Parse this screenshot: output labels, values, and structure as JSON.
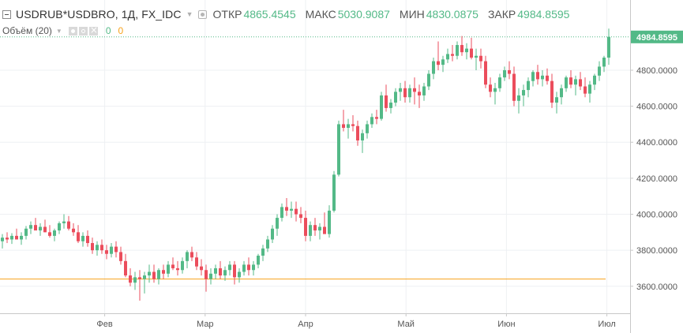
{
  "legend": {
    "symbol": "USDRUB*USDBRO, 1Д, FX_IDC",
    "open_label": "ОТКР",
    "open_value": "4865.4545",
    "high_label": "МАКС",
    "high_value": "5030.9087",
    "low_label": "МИН",
    "low_value": "4830.0875",
    "close_label": "ЗАКР",
    "close_value": "4984.8595"
  },
  "volume": {
    "label": "Объём (20)",
    "value1": "0",
    "value2": "0"
  },
  "price_label": "4984.8595",
  "colors": {
    "up": "#53b987",
    "down": "#eb4d5c",
    "price_tag": "#53b987",
    "hline": "#f7a21b"
  },
  "chart_data": {
    "type": "candlestick",
    "title": "USDRUB*USDBRO, 1Д, FX_IDC",
    "ylim": [
      3450,
      5190
    ],
    "y_ticks": [
      3600,
      3800,
      4000,
      4200,
      4400,
      4600,
      4800
    ],
    "y_tick_labels": [
      "3600.0000",
      "3800.0000",
      "4000.0000",
      "4200.0000",
      "4400.0000",
      "4600.0000",
      "4800.0000"
    ],
    "x_tick_labels": [
      "Фев",
      "Мар",
      "Апр",
      "Май",
      "Июн",
      "Июл"
    ],
    "x_tick_index": [
      21.6,
      42.8,
      64.0,
      85.2,
      106.4,
      127.6
    ],
    "last_price": 4984.8595,
    "horizontal_line": 3640,
    "ohlc": [
      [
        3850,
        3890,
        3810,
        3870
      ],
      [
        3870,
        3900,
        3840,
        3860
      ],
      [
        3860,
        3895,
        3835,
        3880
      ],
      [
        3880,
        3920,
        3860,
        3860
      ],
      [
        3860,
        3900,
        3830,
        3880
      ],
      [
        3880,
        3935,
        3860,
        3920
      ],
      [
        3920,
        3960,
        3890,
        3940
      ],
      [
        3940,
        3980,
        3910,
        3910
      ],
      [
        3910,
        3950,
        3880,
        3930
      ],
      [
        3930,
        3970,
        3900,
        3900
      ],
      [
        3900,
        3940,
        3870,
        3880
      ],
      [
        3880,
        3920,
        3850,
        3910
      ],
      [
        3910,
        3960,
        3890,
        3950
      ],
      [
        3950,
        4000,
        3920,
        3960
      ],
      [
        3960,
        3990,
        3910,
        3920
      ],
      [
        3920,
        3950,
        3880,
        3900
      ],
      [
        3900,
        3940,
        3840,
        3850
      ],
      [
        3850,
        3900,
        3820,
        3880
      ],
      [
        3880,
        3910,
        3820,
        3840
      ],
      [
        3840,
        3870,
        3780,
        3800
      ],
      [
        3800,
        3850,
        3770,
        3830
      ],
      [
        3830,
        3860,
        3780,
        3800
      ],
      [
        3800,
        3830,
        3750,
        3780
      ],
      [
        3780,
        3840,
        3760,
        3820
      ],
      [
        3820,
        3850,
        3760,
        3790
      ],
      [
        3790,
        3820,
        3720,
        3740
      ],
      [
        3740,
        3780,
        3650,
        3660
      ],
      [
        3660,
        3700,
        3600,
        3620
      ],
      [
        3620,
        3680,
        3580,
        3650
      ],
      [
        3650,
        3690,
        3520,
        3640
      ],
      [
        3640,
        3680,
        3560,
        3660
      ],
      [
        3660,
        3720,
        3620,
        3680
      ],
      [
        3680,
        3720,
        3620,
        3640
      ],
      [
        3640,
        3700,
        3610,
        3690
      ],
      [
        3690,
        3720,
        3640,
        3670
      ],
      [
        3670,
        3740,
        3650,
        3720
      ],
      [
        3720,
        3760,
        3690,
        3700
      ],
      [
        3700,
        3740,
        3660,
        3690
      ],
      [
        3690,
        3760,
        3670,
        3740
      ],
      [
        3740,
        3800,
        3700,
        3790
      ],
      [
        3790,
        3820,
        3740,
        3760
      ],
      [
        3760,
        3790,
        3690,
        3710
      ],
      [
        3710,
        3750,
        3660,
        3690
      ],
      [
        3690,
        3720,
        3570,
        3640
      ],
      [
        3640,
        3700,
        3610,
        3670
      ],
      [
        3670,
        3720,
        3640,
        3700
      ],
      [
        3700,
        3740,
        3640,
        3660
      ],
      [
        3660,
        3710,
        3630,
        3690
      ],
      [
        3690,
        3740,
        3660,
        3720
      ],
      [
        3720,
        3740,
        3610,
        3650
      ],
      [
        3650,
        3700,
        3620,
        3680
      ],
      [
        3680,
        3740,
        3660,
        3720
      ],
      [
        3720,
        3760,
        3660,
        3690
      ],
      [
        3690,
        3740,
        3660,
        3720
      ],
      [
        3720,
        3780,
        3700,
        3770
      ],
      [
        3770,
        3830,
        3740,
        3810
      ],
      [
        3810,
        3880,
        3790,
        3860
      ],
      [
        3860,
        3940,
        3840,
        3920
      ],
      [
        3920,
        4000,
        3880,
        3980
      ],
      [
        3980,
        4060,
        3960,
        4040
      ],
      [
        4040,
        4090,
        3990,
        4020
      ],
      [
        4020,
        4070,
        3980,
        4030
      ],
      [
        4030,
        4070,
        3960,
        4000
      ],
      [
        4000,
        4040,
        3950,
        3980
      ],
      [
        3980,
        4020,
        3850,
        3880
      ],
      [
        3880,
        3960,
        3850,
        3940
      ],
      [
        3940,
        3980,
        3880,
        3910
      ],
      [
        3910,
        3950,
        3860,
        3930
      ],
      [
        3930,
        4010,
        3900,
        3890
      ],
      [
        3890,
        4050,
        3870,
        4020
      ],
      [
        4020,
        4240,
        4010,
        4220
      ],
      [
        4220,
        4520,
        4210,
        4500
      ],
      [
        4500,
        4580,
        4460,
        4480
      ],
      [
        4480,
        4530,
        4420,
        4500
      ],
      [
        4500,
        4550,
        4460,
        4490
      ],
      [
        4490,
        4520,
        4380,
        4410
      ],
      [
        4410,
        4470,
        4340,
        4450
      ],
      [
        4450,
        4520,
        4420,
        4500
      ],
      [
        4500,
        4560,
        4480,
        4540
      ],
      [
        4540,
        4580,
        4500,
        4530
      ],
      [
        4530,
        4680,
        4520,
        4660
      ],
      [
        4660,
        4720,
        4570,
        4590
      ],
      [
        4590,
        4640,
        4560,
        4620
      ],
      [
        4620,
        4700,
        4600,
        4680
      ],
      [
        4680,
        4730,
        4630,
        4700
      ],
      [
        4700,
        4740,
        4620,
        4650
      ],
      [
        4650,
        4720,
        4620,
        4700
      ],
      [
        4700,
        4760,
        4610,
        4680
      ],
      [
        4680,
        4720,
        4590,
        4660
      ],
      [
        4660,
        4730,
        4630,
        4710
      ],
      [
        4710,
        4800,
        4690,
        4780
      ],
      [
        4780,
        4870,
        4750,
        4850
      ],
      [
        4850,
        4960,
        4800,
        4830
      ],
      [
        4830,
        4880,
        4790,
        4860
      ],
      [
        4860,
        4920,
        4840,
        4890
      ],
      [
        4890,
        4940,
        4850,
        4880
      ],
      [
        4880,
        4960,
        4860,
        4940
      ],
      [
        4940,
        4990,
        4880,
        4900
      ],
      [
        4900,
        4950,
        4860,
        4920
      ],
      [
        4920,
        4980,
        4860,
        4870
      ],
      [
        4870,
        4920,
        4800,
        4880
      ],
      [
        4880,
        4920,
        4810,
        4850
      ],
      [
        4850,
        4880,
        4700,
        4720
      ],
      [
        4720,
        4760,
        4650,
        4680
      ],
      [
        4680,
        4730,
        4610,
        4700
      ],
      [
        4700,
        4780,
        4680,
        4760
      ],
      [
        4760,
        4820,
        4740,
        4800
      ],
      [
        4800,
        4850,
        4750,
        4780
      ],
      [
        4780,
        4820,
        4600,
        4630
      ],
      [
        4630,
        4700,
        4560,
        4660
      ],
      [
        4660,
        4720,
        4600,
        4690
      ],
      [
        4690,
        4760,
        4650,
        4740
      ],
      [
        4740,
        4800,
        4710,
        4790
      ],
      [
        4790,
        4830,
        4720,
        4750
      ],
      [
        4750,
        4800,
        4710,
        4770
      ],
      [
        4770,
        4810,
        4720,
        4740
      ],
      [
        4740,
        4780,
        4590,
        4620
      ],
      [
        4620,
        4680,
        4560,
        4650
      ],
      [
        4650,
        4720,
        4610,
        4700
      ],
      [
        4700,
        4770,
        4680,
        4760
      ],
      [
        4760,
        4800,
        4700,
        4720
      ],
      [
        4720,
        4770,
        4660,
        4750
      ],
      [
        4750,
        4790,
        4690,
        4710
      ],
      [
        4710,
        4760,
        4650,
        4670
      ],
      [
        4670,
        4740,
        4620,
        4720
      ],
      [
        4720,
        4780,
        4690,
        4770
      ],
      [
        4770,
        4850,
        4740,
        4820
      ],
      [
        4820,
        4880,
        4790,
        4870
      ],
      [
        4870,
        5031,
        4830,
        4985
      ]
    ]
  }
}
